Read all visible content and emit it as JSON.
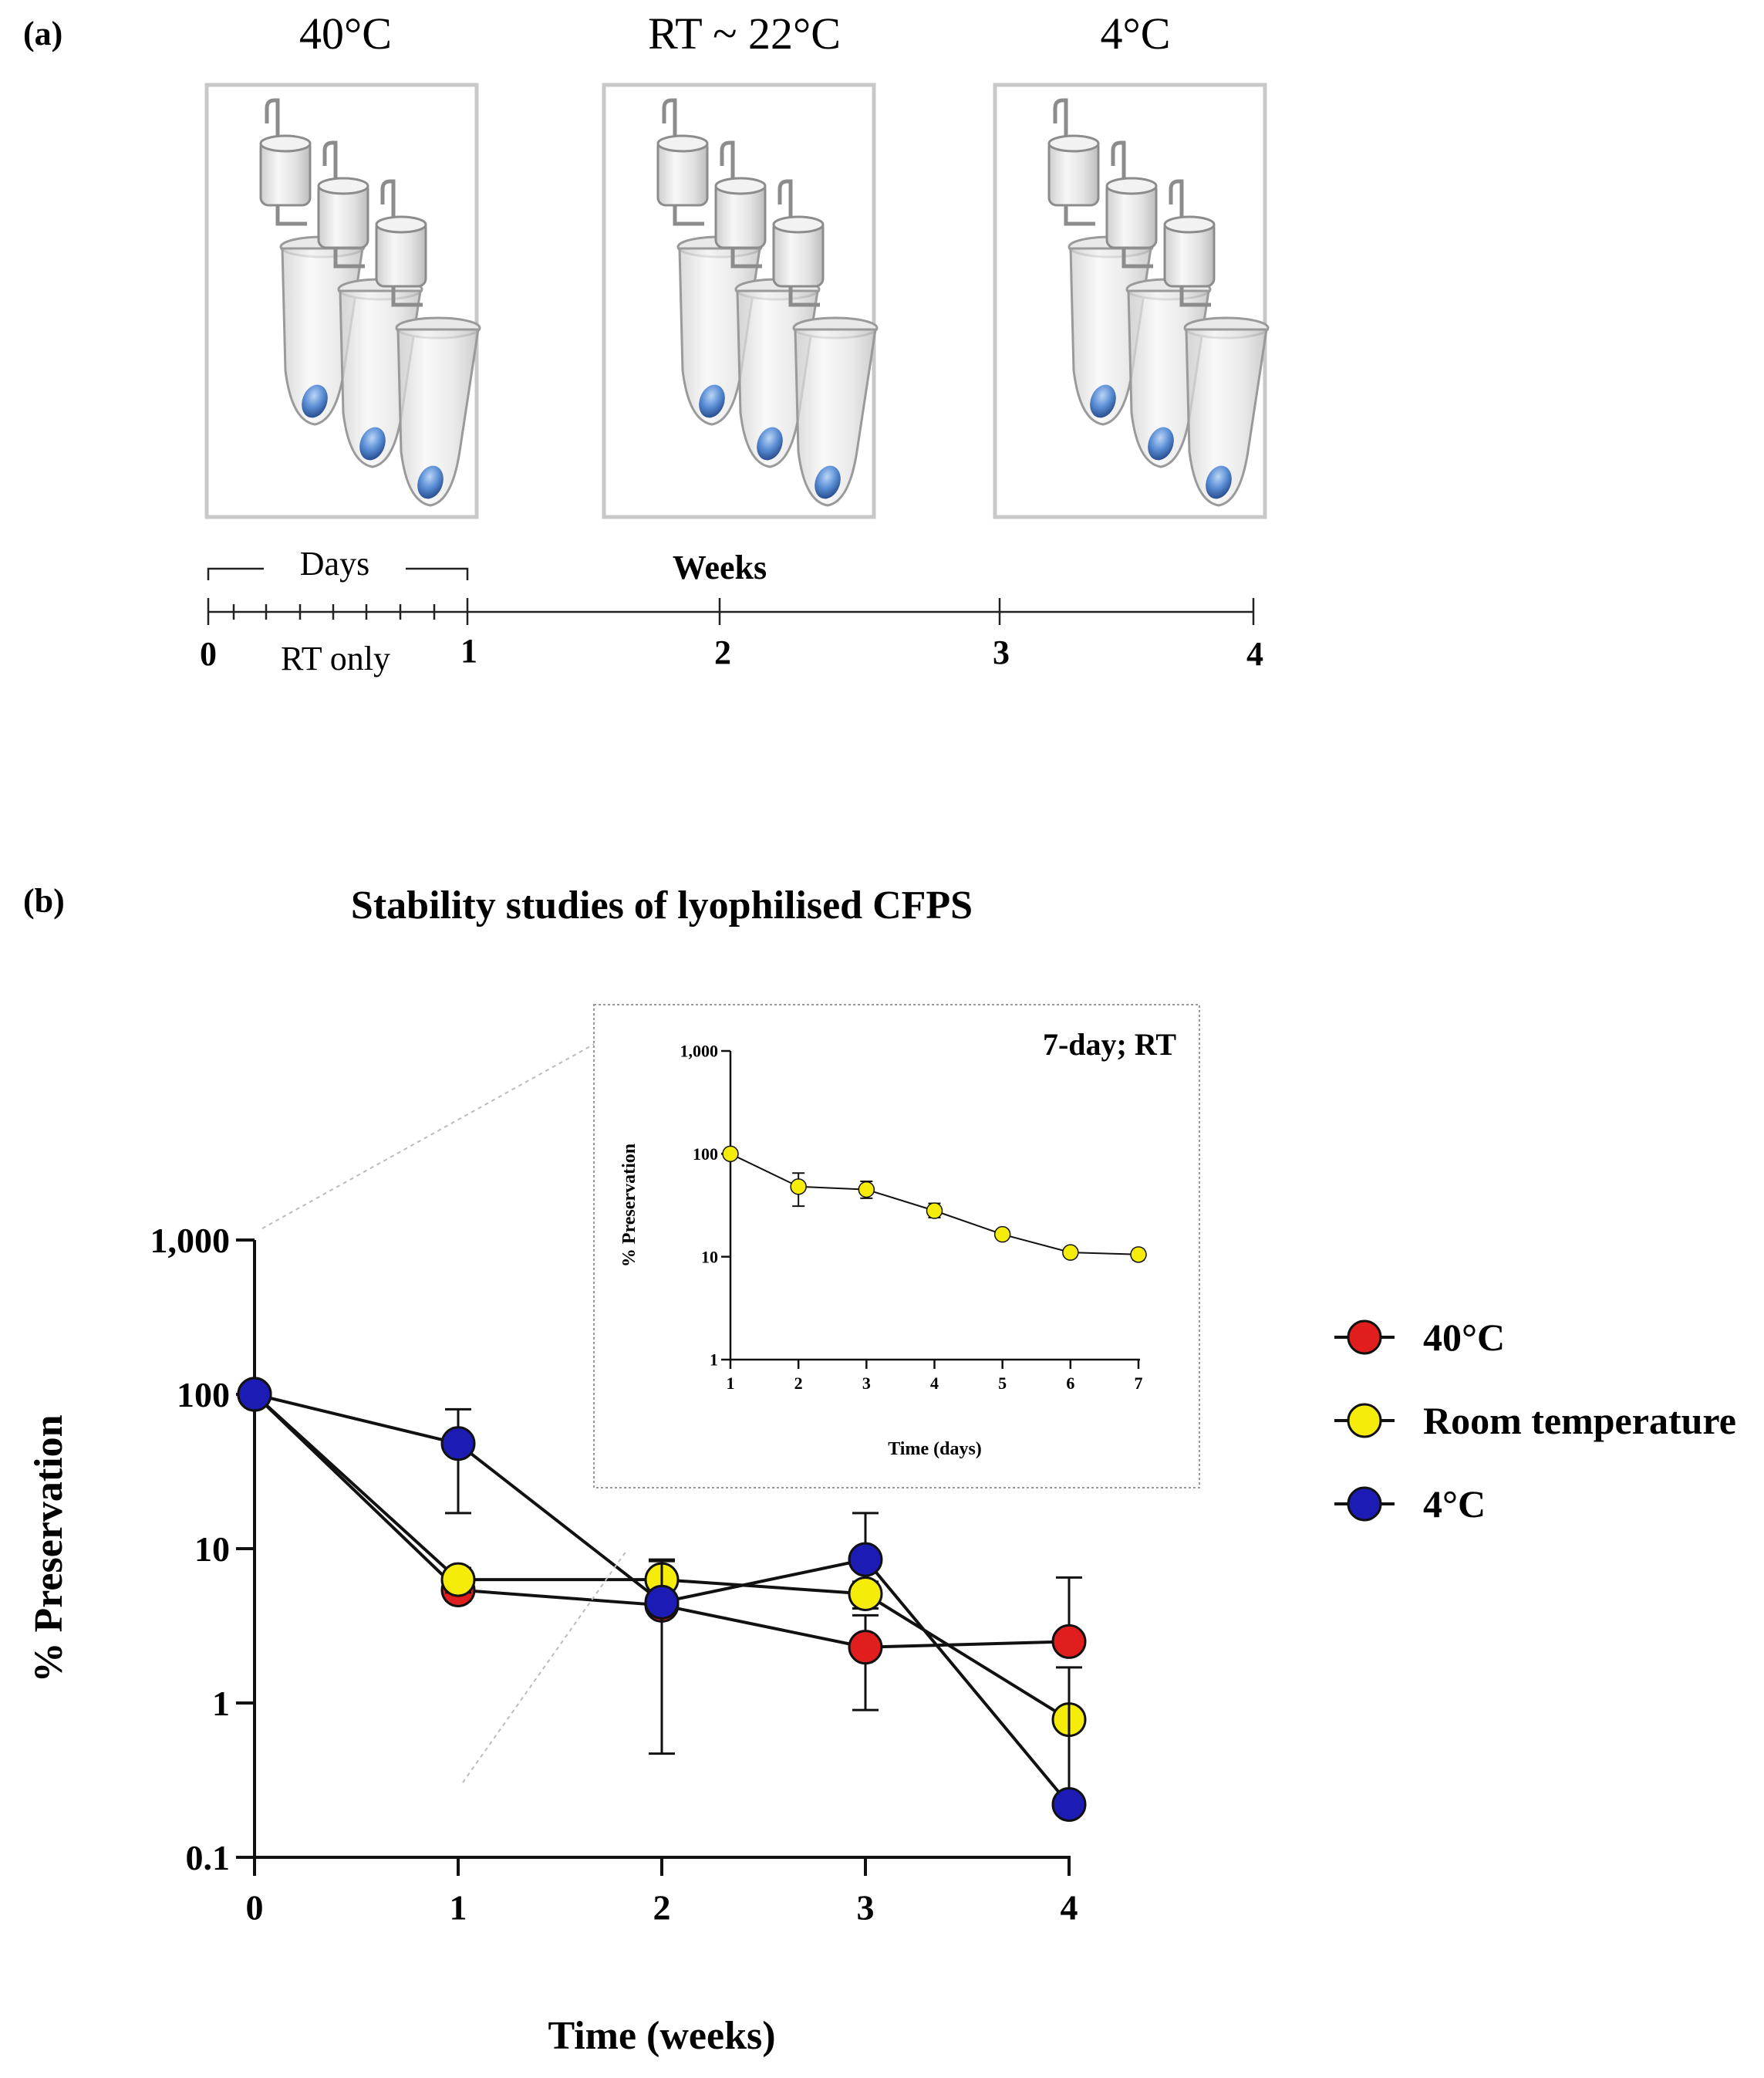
{
  "panel_a": {
    "label": "(a)",
    "conditions": [
      "40°C",
      "RT ~ 22°C",
      "4°C"
    ],
    "timeline": {
      "days_label": "Days",
      "weeks_label": "Weeks",
      "rt_only_label": "RT only",
      "ticks": [
        "0",
        "1",
        "2",
        "3",
        "4"
      ]
    }
  },
  "panel_b": {
    "label": "(b)",
    "inset_title": "7-day; RT"
  },
  "colors": {
    "40C": "#e01e1e",
    "RT": "#f5ec0a",
    "4C": "#1c1cb4"
  },
  "chart_data": [
    {
      "type": "line",
      "title": "Stability studies of lyophilised CFPS",
      "xlabel": "Time (weeks)",
      "ylabel": "% Preservation",
      "yscale": "log",
      "ylim": [
        0.1,
        1000
      ],
      "xlim": [
        0,
        4
      ],
      "x": [
        0,
        1,
        2,
        3,
        4
      ],
      "xtick_labels": [
        "0",
        "1",
        "2",
        "3",
        "4"
      ],
      "yticks": [
        0.1,
        1,
        10,
        100,
        1000
      ],
      "ytick_labels": [
        "0.1",
        "1",
        "10",
        "100",
        "1,000"
      ],
      "legend_position": "right",
      "series": [
        {
          "name": "40°C",
          "color": "#e01e1e",
          "values": [
            100,
            5.4,
            4.3,
            2.3,
            2.5
          ],
          "err_low": [
            100,
            4.6,
            3.9,
            0.9,
            2.5
          ],
          "err_high": [
            100,
            6.2,
            4.7,
            3.7,
            6.5
          ]
        },
        {
          "name": "Room temperature",
          "color": "#f5ec0a",
          "values": [
            100,
            6.3,
            6.3,
            5.1,
            0.78
          ],
          "err_low": [
            100,
            5.2,
            4.4,
            4.1,
            0.78
          ],
          "err_high": [
            100,
            7.5,
            8.3,
            6.1,
            0.78
          ]
        },
        {
          "name": "4°C",
          "color": "#1c1cb4",
          "values": [
            100,
            48,
            4.5,
            8.5,
            0.22
          ],
          "err_low": [
            100,
            17,
            0.47,
            8.5,
            0.22
          ],
          "err_high": [
            100,
            80,
            8.5,
            17,
            1.7
          ]
        }
      ]
    },
    {
      "type": "line",
      "title": "7-day; RT",
      "xlabel": "Time (days)",
      "ylabel": "% Preservation",
      "yscale": "log",
      "ylim": [
        1,
        1000
      ],
      "xlim": [
        1,
        7
      ],
      "x": [
        1,
        2,
        3,
        4,
        5,
        6,
        7
      ],
      "xtick_labels": [
        "1",
        "2",
        "3",
        "4",
        "5",
        "6",
        "7"
      ],
      "yticks": [
        1,
        10,
        100,
        1000
      ],
      "ytick_labels": [
        "1",
        "10",
        "100",
        "1,000"
      ],
      "series": [
        {
          "name": "Room temperature",
          "color": "#f5ec0a",
          "values": [
            100,
            48,
            45,
            28,
            16.5,
            11,
            10.5
          ],
          "err_low": [
            100,
            31,
            37,
            24,
            15,
            11,
            9.3
          ],
          "err_high": [
            100,
            65,
            54,
            33,
            18.5,
            11,
            11.8
          ]
        }
      ]
    }
  ]
}
